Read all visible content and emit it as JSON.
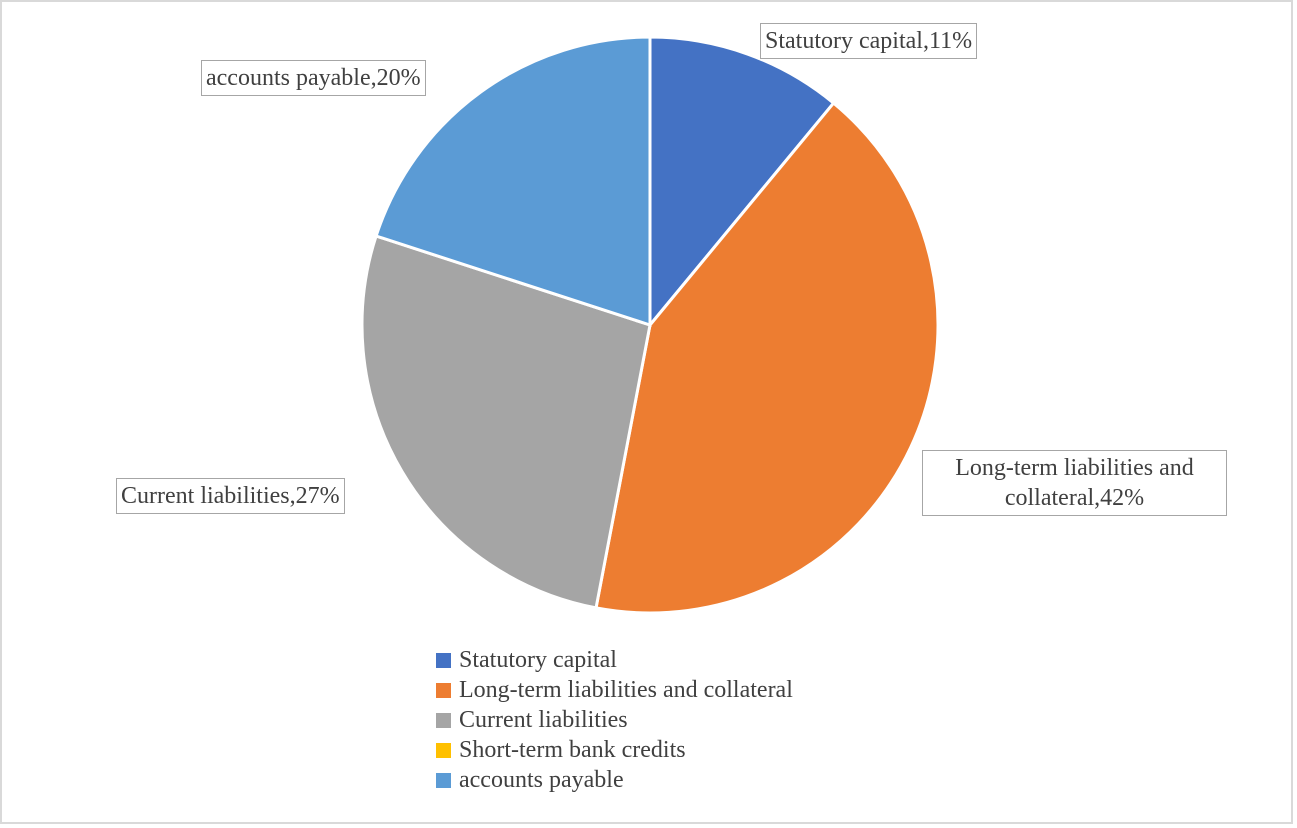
{
  "chart_data": {
    "type": "pie",
    "title": "",
    "start_angle_deg": 0,
    "direction": "clockwise",
    "legend_position": "bottom",
    "slices": [
      {
        "name": "Statutory capital",
        "value": 11,
        "label": "Statutory capital,11%",
        "color": "#4472C4"
      },
      {
        "name": "Long-term liabilities and collateral",
        "value": 42,
        "label": "Long-term liabilities and collateral,42%",
        "color": "#ED7D31"
      },
      {
        "name": "Current liabilities",
        "value": 27,
        "label": "Current liabilities,27%",
        "color": "#A5A5A5"
      },
      {
        "name": "Short-term bank credits",
        "value": 0,
        "label": "",
        "color": "#FFC000"
      },
      {
        "name": "accounts payable",
        "value": 20,
        "label": "accounts payable,20%",
        "color": "#5B9BD5"
      }
    ]
  }
}
